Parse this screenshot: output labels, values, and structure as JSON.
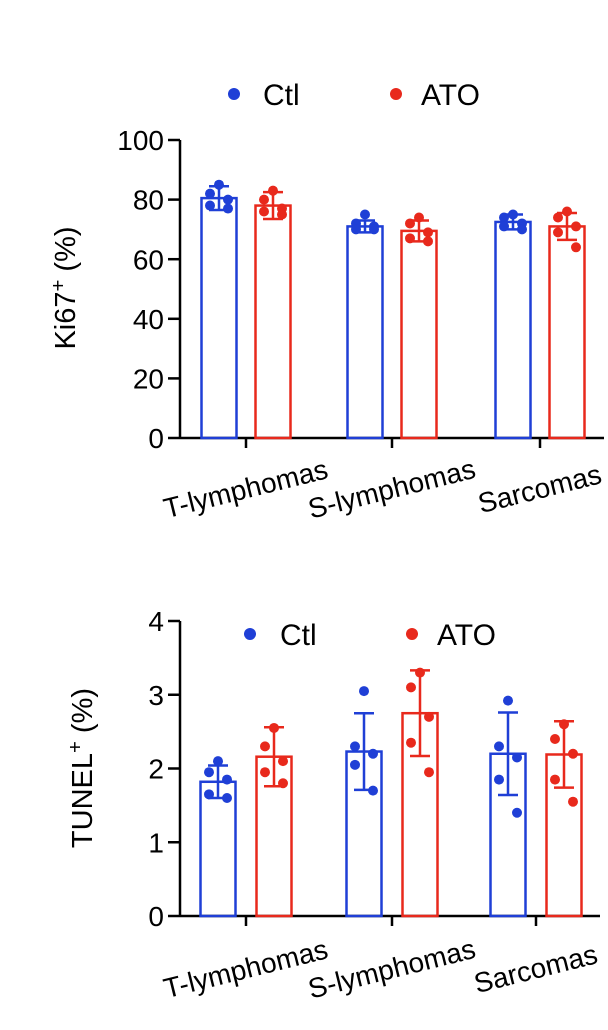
{
  "colors": {
    "ctl": "#1f3fd6",
    "ato": "#e8291c",
    "axis": "#000000"
  },
  "chart_data": [
    {
      "type": "bar",
      "ylabel": "Ki67",
      "ylabel_sup": "+",
      "ylabel_unit": " (%)",
      "ylim": [
        0,
        100
      ],
      "yticks": [
        0,
        20,
        40,
        60,
        80,
        100
      ],
      "grid": false,
      "legend": "top",
      "categories": [
        "T-lymphomas",
        "S-lymphomas",
        "Sarcomas"
      ],
      "series": [
        {
          "name": "Ctl",
          "color": "#1f3fd6",
          "values": [
            80.5,
            71,
            72.5
          ],
          "sd": [
            4,
            2,
            2.5
          ],
          "points": [
            [
              85,
              82,
              80,
              78,
              77
            ],
            [
              75,
              72,
              71,
              70,
              70
            ],
            [
              75,
              74,
              72,
              71,
              70
            ]
          ]
        },
        {
          "name": "ATO",
          "color": "#e8291c",
          "values": [
            78,
            69.5,
            71
          ],
          "sd": [
            4.5,
            3.5,
            4.5
          ],
          "points": [
            [
              83,
              80,
              77,
              76,
              75
            ],
            [
              74,
              72,
              69,
              67,
              66
            ],
            [
              76,
              74,
              71,
              69,
              64
            ]
          ]
        }
      ]
    },
    {
      "type": "bar",
      "ylabel": "TUNEL",
      "ylabel_sup": "+",
      "ylabel_unit": " (%)",
      "ylim": [
        0,
        4
      ],
      "yticks": [
        0,
        1,
        2,
        3,
        4
      ],
      "grid": false,
      "legend": "top",
      "categories": [
        "T-lymphomas",
        "S-lymphomas",
        "Sarcomas"
      ],
      "series": [
        {
          "name": "Ctl",
          "color": "#1f3fd6",
          "values": [
            1.82,
            2.23,
            2.2
          ],
          "sd": [
            0.22,
            0.52,
            0.56
          ],
          "points": [
            [
              2.1,
              1.95,
              1.85,
              1.65,
              1.6
            ],
            [
              3.05,
              2.3,
              2.2,
              2.05,
              1.7
            ],
            [
              2.92,
              2.3,
              2.15,
              1.85,
              1.4
            ]
          ]
        },
        {
          "name": "ATO",
          "color": "#e8291c",
          "values": [
            2.16,
            2.75,
            2.19
          ],
          "sd": [
            0.4,
            0.58,
            0.45
          ],
          "points": [
            [
              2.55,
              2.3,
              2.1,
              1.95,
              1.8
            ],
            [
              3.3,
              3.1,
              2.7,
              2.35,
              1.95
            ],
            [
              2.6,
              2.4,
              2.2,
              1.85,
              1.55
            ]
          ]
        }
      ]
    }
  ]
}
